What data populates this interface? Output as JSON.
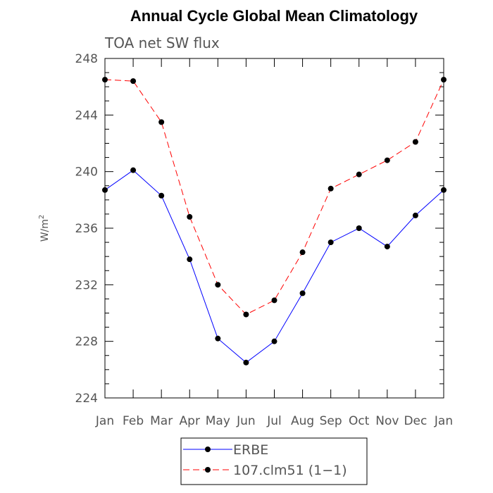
{
  "chart_data": {
    "type": "line",
    "title": "Annual Cycle Global Mean Climatology",
    "subtitle": "TOA net SW flux",
    "xlabel": "",
    "ylabel": "W/m",
    "ylabel_superscript": "2",
    "categories": [
      "Jan",
      "Feb",
      "Mar",
      "Apr",
      "May",
      "Jun",
      "Jul",
      "Aug",
      "Sep",
      "Oct",
      "Nov",
      "Dec",
      "Jan"
    ],
    "ylim": [
      224,
      248
    ],
    "yticks": [
      224,
      228,
      232,
      236,
      240,
      244,
      248
    ],
    "series": [
      {
        "name": "ERBE",
        "color": "#0000ff",
        "dashed": false,
        "values": [
          238.7,
          240.1,
          238.3,
          233.8,
          228.2,
          226.5,
          228.0,
          231.4,
          235.0,
          236.0,
          234.7,
          236.9,
          238.7
        ]
      },
      {
        "name": "107.clm51 (1−1)",
        "color": "#ff0000",
        "dashed": true,
        "values": [
          246.5,
          246.4,
          243.5,
          236.8,
          232.0,
          229.9,
          230.9,
          234.3,
          238.8,
          239.8,
          240.8,
          242.1,
          246.5
        ]
      }
    ],
    "legend_position": "bottom-center"
  }
}
